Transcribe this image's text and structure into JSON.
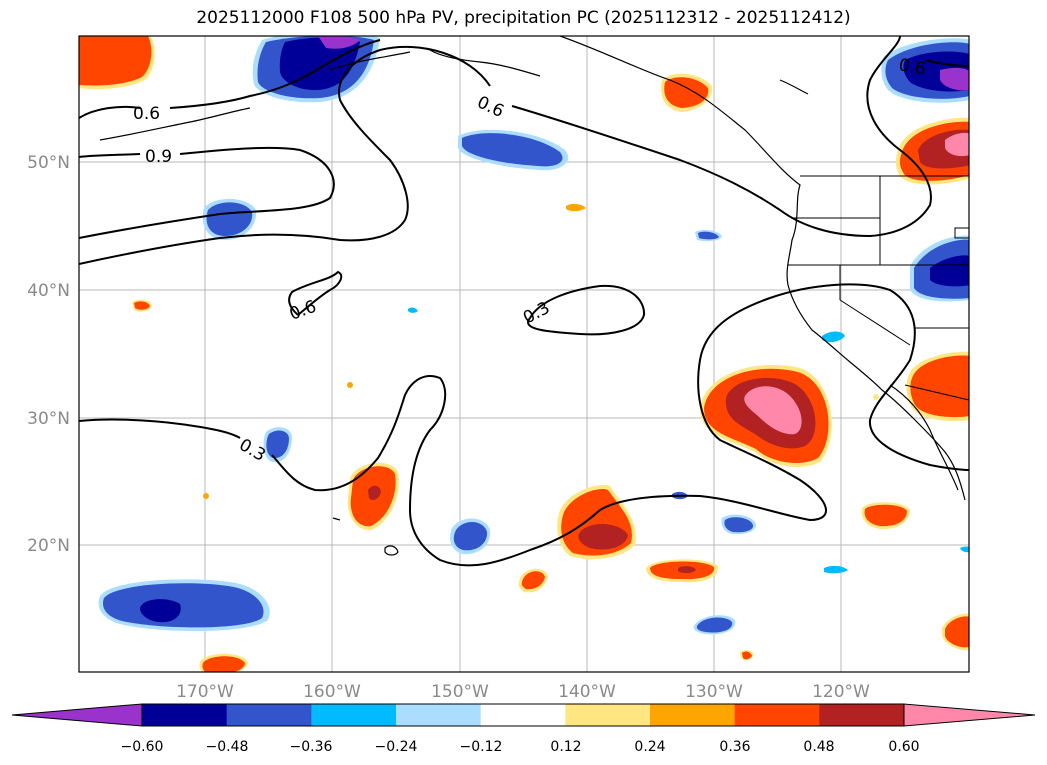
{
  "title": "2025112000 F108 500 hPa PV, precipitation PC (2025112312 - 2025112412)",
  "lat_labels": [
    "50°N",
    "40°N",
    "30°N",
    "20°N"
  ],
  "lon_labels": [
    "170°W",
    "160°W",
    "150°W",
    "140°W",
    "130°W",
    "120°W"
  ],
  "pv_contour_labels": [
    "0.6",
    "0.9",
    "0.6",
    "0.6",
    "0.3",
    "0.3",
    "0.6"
  ],
  "colorbar": {
    "tick_labels": [
      "−0.60",
      "−0.48",
      "−0.36",
      "−0.24",
      "−0.12",
      "0.12",
      "0.24",
      "0.36",
      "0.48",
      "0.60"
    ],
    "colors": [
      "#9933cc",
      "#000099",
      "#3355cc",
      "#00bbff",
      "#aaddff",
      "#ffffff",
      "#ffe680",
      "#ffa500",
      "#ff4500",
      "#b22222",
      "#ff88aa"
    ]
  }
}
